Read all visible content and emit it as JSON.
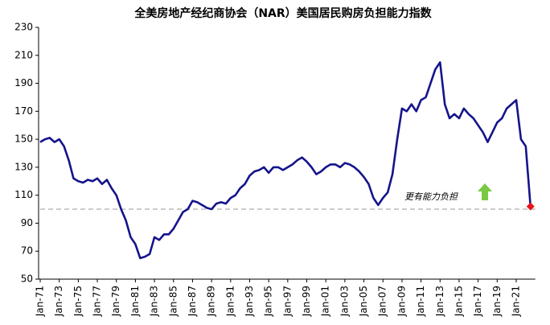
{
  "chart_data": {
    "type": "line",
    "title": "全美房地产经纪商协会（NAR）美国居民购房负担能力指数",
    "annotation": "更有能力负担",
    "reference_line": 100,
    "color": "#14148c",
    "last_point_color": "#e8141e",
    "ylim": [
      50,
      230
    ],
    "yticks": [
      50,
      70,
      90,
      110,
      130,
      150,
      170,
      190,
      210,
      230
    ],
    "categories": [
      "Jan-71",
      null,
      null,
      null,
      "Jan-73",
      null,
      null,
      null,
      "Jan-75",
      null,
      null,
      null,
      "Jan-77",
      null,
      null,
      null,
      "Jan-79",
      null,
      null,
      null,
      "Jan-81",
      null,
      null,
      null,
      "Jan-83",
      null,
      null,
      null,
      "Jan-85",
      null,
      null,
      null,
      "Jan-87",
      null,
      null,
      null,
      "Jan-89",
      null,
      null,
      null,
      "Jan-91",
      null,
      null,
      null,
      "Jan-93",
      null,
      null,
      null,
      "Jan-95",
      null,
      null,
      null,
      "Jan-97",
      null,
      null,
      null,
      "Jan-99",
      null,
      null,
      null,
      "Jan-01",
      null,
      null,
      null,
      "Jan-03",
      null,
      null,
      null,
      "Jan-05",
      null,
      null,
      null,
      "Jan-07",
      null,
      null,
      null,
      "Jan-09",
      null,
      null,
      null,
      "Jan-11",
      null,
      null,
      null,
      "Jan-13",
      null,
      null,
      null,
      "Jan-15",
      null,
      null,
      null,
      "Jan-17",
      null,
      null,
      null,
      "Jan-19",
      null,
      null,
      null,
      "Jan-21",
      null,
      null,
      null
    ],
    "values": [
      148,
      150,
      151,
      148,
      150,
      145,
      135,
      122,
      120,
      119,
      121,
      120,
      122,
      118,
      121,
      115,
      110,
      100,
      92,
      80,
      75,
      65,
      66,
      68,
      80,
      78,
      82,
      82,
      86,
      92,
      98,
      100,
      106,
      105,
      103,
      101,
      100,
      104,
      105,
      104,
      108,
      110,
      115,
      118,
      124,
      127,
      128,
      130,
      126,
      130,
      130,
      128,
      130,
      132,
      135,
      137,
      134,
      130,
      125,
      127,
      130,
      132,
      132,
      130,
      133,
      132,
      130,
      127,
      123,
      118,
      108,
      103,
      108,
      112,
      125,
      150,
      172,
      170,
      175,
      170,
      178,
      180,
      190,
      200,
      205,
      175,
      165,
      168,
      165,
      172,
      168,
      165,
      160,
      155,
      148,
      155,
      162,
      165,
      172,
      175,
      178,
      150,
      145,
      102
    ]
  }
}
